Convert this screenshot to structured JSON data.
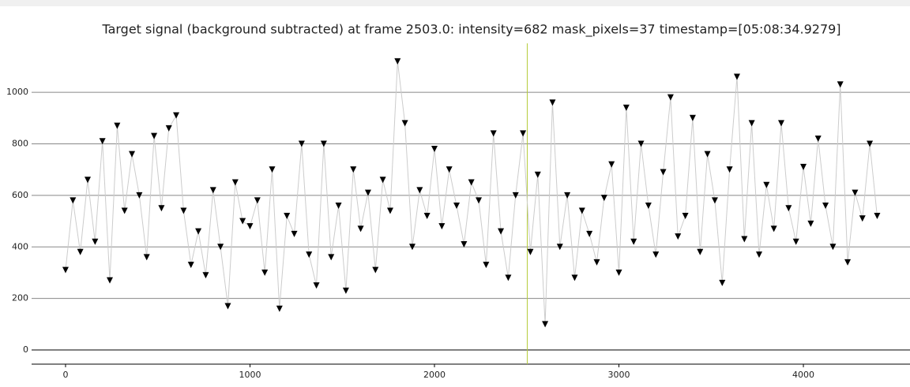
{
  "chart_data": {
    "type": "line",
    "title": "Target signal (background subtracted) at frame 2503.0: intensity=682 mask_pixels=37 timestamp=[05:08:34.9279]",
    "x": [
      0,
      40,
      80,
      120,
      160,
      200,
      240,
      280,
      320,
      360,
      400,
      440,
      480,
      520,
      560,
      600,
      640,
      680,
      720,
      760,
      800,
      840,
      880,
      920,
      960,
      1000,
      1040,
      1080,
      1120,
      1160,
      1200,
      1240,
      1280,
      1320,
      1360,
      1400,
      1440,
      1480,
      1520,
      1560,
      1600,
      1640,
      1680,
      1720,
      1760,
      1800,
      1840,
      1880,
      1920,
      1960,
      2000,
      2040,
      2080,
      2120,
      2160,
      2200,
      2240,
      2280,
      2320,
      2360,
      2400,
      2440,
      2480,
      2520,
      2560,
      2600,
      2640,
      2680,
      2720,
      2760,
      2800,
      2840,
      2880,
      2920,
      2960,
      3000,
      3040,
      3080,
      3120,
      3160,
      3200,
      3240,
      3280,
      3320,
      3360,
      3400,
      3440,
      3480,
      3520,
      3560,
      3600,
      3640,
      3680,
      3720,
      3760,
      3800,
      3840,
      3880,
      3920,
      3960,
      4000,
      4040,
      4080,
      4120,
      4160,
      4200,
      4240,
      4280,
      4320,
      4360,
      4400
    ],
    "values": [
      310,
      580,
      380,
      660,
      420,
      810,
      270,
      870,
      540,
      760,
      600,
      360,
      830,
      550,
      860,
      910,
      540,
      330,
      460,
      290,
      620,
      400,
      170,
      650,
      500,
      480,
      580,
      300,
      700,
      160,
      520,
      450,
      800,
      370,
      250,
      800,
      360,
      560,
      230,
      700,
      470,
      610,
      310,
      660,
      540,
      1120,
      880,
      400,
      620,
      520,
      780,
      480,
      700,
      560,
      410,
      650,
      580,
      330,
      840,
      460,
      280,
      600,
      840,
      380,
      680,
      100,
      960,
      400,
      600,
      280,
      540,
      450,
      340,
      590,
      720,
      300,
      940,
      420,
      800,
      560,
      370,
      690,
      980,
      440,
      520,
      900,
      380,
      760,
      580,
      260,
      700,
      1060,
      430,
      880,
      370,
      640,
      470,
      880,
      550,
      420,
      710,
      490,
      820,
      560,
      400,
      1030,
      340,
      610,
      510,
      800,
      520
    ],
    "color": "#000000",
    "line_color": "#cccccc",
    "marker": "triangle-down",
    "cursor_x": 2503,
    "cursor_color": "#b5cc3a",
    "xlim": [
      -184,
      4578
    ],
    "ylim": [
      -55,
      1190
    ],
    "xticks": [
      0,
      1000,
      2000,
      3000,
      4000
    ],
    "yticks": [
      0,
      200,
      400,
      600,
      800,
      1000
    ],
    "grid": true
  }
}
